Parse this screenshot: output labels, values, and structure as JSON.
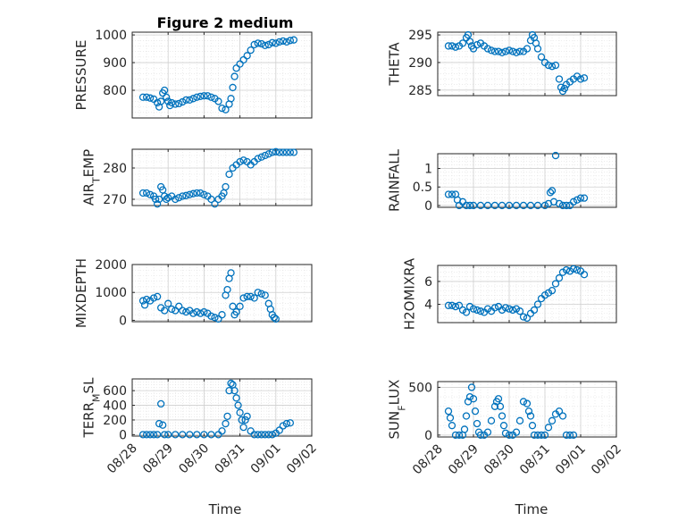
{
  "figure": {
    "title": "Figure 2 medium",
    "x_axis_label": "Time",
    "x_tick_labels": [
      "08/28",
      "08/29",
      "08/30",
      "08/31",
      "09/01",
      "09/02"
    ]
  },
  "colors": {
    "marker": "#0072BD",
    "axis": "#262626",
    "grid": "#dfdfdf"
  },
  "chart_data": [
    {
      "type": "scatter",
      "position": "row1-left",
      "ylabel": "PRESSURE",
      "ylim": [
        700,
        1010
      ],
      "yticks": [
        800,
        900,
        1000
      ],
      "xlim": [
        0,
        5
      ],
      "grid": true,
      "marker": "open-circle",
      "x": [
        0.3,
        0.4,
        0.5,
        0.6,
        0.7,
        0.75,
        0.8,
        0.85,
        0.9,
        0.95,
        1.0,
        1.05,
        1.1,
        1.2,
        1.3,
        1.4,
        1.5,
        1.6,
        1.7,
        1.8,
        1.9,
        2.0,
        2.1,
        2.2,
        2.3,
        2.4,
        2.5,
        2.6,
        2.7,
        2.75,
        2.8,
        2.85,
        2.9,
        3.0,
        3.1,
        3.2,
        3.3,
        3.4,
        3.5,
        3.6,
        3.7,
        3.8,
        3.9,
        4.0,
        4.1,
        4.2,
        4.3,
        4.4,
        4.5
      ],
      "y": [
        775,
        775,
        772,
        768,
        755,
        740,
        760,
        790,
        800,
        775,
        760,
        745,
        755,
        750,
        752,
        758,
        765,
        765,
        770,
        775,
        778,
        780,
        780,
        775,
        770,
        760,
        735,
        730,
        750,
        770,
        810,
        850,
        880,
        895,
        910,
        925,
        945,
        965,
        970,
        968,
        962,
        965,
        972,
        970,
        975,
        978,
        975,
        980,
        982
      ]
    },
    {
      "type": "scatter",
      "position": "row1-right",
      "ylabel": "THETA",
      "ylim": [
        284,
        295.5
      ],
      "yticks": [
        285,
        290,
        295
      ],
      "xlim": [
        0,
        5
      ],
      "grid": true,
      "marker": "open-circle",
      "x": [
        0.3,
        0.4,
        0.5,
        0.6,
        0.7,
        0.8,
        0.85,
        0.9,
        0.95,
        1.0,
        1.1,
        1.2,
        1.3,
        1.4,
        1.5,
        1.6,
        1.7,
        1.8,
        1.9,
        2.0,
        2.1,
        2.2,
        2.3,
        2.4,
        2.5,
        2.6,
        2.65,
        2.7,
        2.75,
        2.8,
        2.9,
        3.0,
        3.1,
        3.2,
        3.3,
        3.4,
        3.45,
        3.5,
        3.55,
        3.6,
        3.7,
        3.8,
        3.9,
        4.0,
        4.1
      ],
      "y": [
        293,
        293,
        292.8,
        293,
        293.5,
        294.5,
        295,
        293.8,
        293,
        292.5,
        293.2,
        293.5,
        293,
        292.5,
        292.2,
        292,
        292,
        291.8,
        292,
        292.2,
        292,
        291.8,
        292,
        292,
        292.5,
        294,
        295,
        294.5,
        293.5,
        292.5,
        291,
        290,
        289.5,
        289.3,
        289.5,
        287,
        285.5,
        284.8,
        285.3,
        286,
        286.5,
        287,
        287.5,
        287,
        287.2
      ]
    },
    {
      "type": "scatter",
      "position": "row2-left",
      "ylabel": "AIR_TEMP",
      "ylim": [
        268,
        286
      ],
      "yticks": [
        270,
        280
      ],
      "xlim": [
        0,
        5
      ],
      "grid": true,
      "marker": "open-circle",
      "x": [
        0.3,
        0.4,
        0.5,
        0.6,
        0.65,
        0.7,
        0.75,
        0.8,
        0.85,
        0.9,
        0.95,
        1.0,
        1.1,
        1.2,
        1.3,
        1.4,
        1.5,
        1.6,
        1.7,
        1.8,
        1.9,
        2.0,
        2.1,
        2.2,
        2.3,
        2.4,
        2.5,
        2.55,
        2.6,
        2.7,
        2.8,
        2.9,
        3.0,
        3.1,
        3.2,
        3.3,
        3.4,
        3.5,
        3.6,
        3.7,
        3.8,
        3.9,
        4.0,
        4.1,
        4.2,
        4.3,
        4.4,
        4.5
      ],
      "y": [
        272,
        272,
        271.5,
        271,
        270,
        268.5,
        270,
        274,
        273,
        271,
        270,
        270.5,
        271,
        270,
        270.5,
        271,
        271.2,
        271.5,
        271.8,
        272,
        272,
        271.5,
        271,
        270,
        268.5,
        270,
        271,
        272,
        274,
        278,
        280,
        281,
        282,
        282.5,
        282,
        281,
        282,
        283,
        283.5,
        284,
        284.5,
        285,
        285.2,
        285,
        285,
        285,
        285,
        285
      ]
    },
    {
      "type": "scatter",
      "position": "row2-right",
      "ylabel": "RAINFALL",
      "ylim": [
        -0.05,
        1.4
      ],
      "yticks": [
        0,
        0.5,
        1
      ],
      "xlim": [
        0,
        5
      ],
      "grid": true,
      "marker": "open-circle",
      "x": [
        0.3,
        0.4,
        0.5,
        0.55,
        0.6,
        0.7,
        0.8,
        0.9,
        1.0,
        1.2,
        1.4,
        1.6,
        1.8,
        2.0,
        2.2,
        2.4,
        2.6,
        2.8,
        3.0,
        3.1,
        3.15,
        3.2,
        3.25,
        3.3,
        3.4,
        3.5,
        3.6,
        3.7,
        3.8,
        3.9,
        4.0,
        4.1
      ],
      "y": [
        0.3,
        0.3,
        0.3,
        0.15,
        0,
        0.1,
        0,
        0,
        0,
        0,
        0,
        0,
        0,
        0,
        0,
        0,
        0,
        0,
        0,
        0.05,
        0.35,
        0.4,
        0.1,
        1.35,
        0.05,
        0,
        0,
        0,
        0.1,
        0.15,
        0.2,
        0.2
      ]
    },
    {
      "type": "scatter",
      "position": "row3-left",
      "ylabel": "MIXDEPTH",
      "ylim": [
        -50,
        2000
      ],
      "yticks": [
        0,
        1000,
        2000
      ],
      "xlim": [
        0,
        5
      ],
      "grid": true,
      "marker": "open-circle",
      "x": [
        0.3,
        0.35,
        0.4,
        0.5,
        0.6,
        0.7,
        0.8,
        0.9,
        1.0,
        1.1,
        1.2,
        1.3,
        1.4,
        1.5,
        1.6,
        1.7,
        1.8,
        1.9,
        2.0,
        2.1,
        2.2,
        2.3,
        2.4,
        2.5,
        2.6,
        2.65,
        2.7,
        2.75,
        2.8,
        2.85,
        2.9,
        3.0,
        3.1,
        3.2,
        3.3,
        3.4,
        3.5,
        3.6,
        3.7,
        3.8,
        3.85,
        3.9,
        3.95,
        4.0
      ],
      "y": [
        700,
        550,
        750,
        700,
        800,
        850,
        450,
        350,
        600,
        400,
        350,
        500,
        350,
        300,
        350,
        250,
        300,
        250,
        300,
        250,
        150,
        100,
        50,
        200,
        900,
        1100,
        1500,
        1700,
        500,
        200,
        300,
        500,
        800,
        850,
        850,
        800,
        1000,
        950,
        900,
        600,
        400,
        200,
        100,
        50
      ]
    },
    {
      "type": "scatter",
      "position": "row3-right",
      "ylabel": "H2OMIXRA",
      "ylim": [
        2.4,
        7.4
      ],
      "yticks": [
        4,
        6
      ],
      "xlim": [
        0,
        5
      ],
      "grid": true,
      "marker": "open-circle",
      "x": [
        0.3,
        0.4,
        0.5,
        0.6,
        0.7,
        0.8,
        0.9,
        1.0,
        1.1,
        1.2,
        1.3,
        1.4,
        1.5,
        1.6,
        1.7,
        1.8,
        1.9,
        2.0,
        2.1,
        2.2,
        2.3,
        2.4,
        2.5,
        2.6,
        2.7,
        2.8,
        2.9,
        3.0,
        3.1,
        3.2,
        3.3,
        3.4,
        3.5,
        3.6,
        3.7,
        3.8,
        3.9,
        4.0,
        4.1
      ],
      "y": [
        3.9,
        3.9,
        3.8,
        3.9,
        3.5,
        3.3,
        3.8,
        3.6,
        3.5,
        3.4,
        3.3,
        3.6,
        3.4,
        3.7,
        3.8,
        3.5,
        3.7,
        3.6,
        3.5,
        3.6,
        3.4,
        2.9,
        2.8,
        3.2,
        3.5,
        4.0,
        4.5,
        4.8,
        5.0,
        5.2,
        5.8,
        6.3,
        6.8,
        7.0,
        6.9,
        7.1,
        7.0,
        6.9,
        6.6
      ]
    },
    {
      "type": "scatter",
      "position": "row4-left",
      "ylabel": "TERR_MSL",
      "ylim": [
        -20,
        760
      ],
      "yticks": [
        0,
        200,
        400,
        600
      ],
      "xlim": [
        0,
        5
      ],
      "grid": true,
      "marker": "open-circle",
      "x": [
        0.3,
        0.4,
        0.5,
        0.6,
        0.7,
        0.75,
        0.8,
        0.85,
        0.9,
        1.0,
        1.2,
        1.4,
        1.6,
        1.8,
        2.0,
        2.2,
        2.4,
        2.5,
        2.6,
        2.65,
        2.7,
        2.75,
        2.8,
        2.85,
        2.9,
        2.95,
        3.0,
        3.05,
        3.1,
        3.15,
        3.2,
        3.3,
        3.4,
        3.5,
        3.6,
        3.7,
        3.8,
        3.9,
        4.0,
        4.1,
        4.2,
        4.3,
        4.4
      ],
      "y": [
        0,
        0,
        0,
        0,
        0,
        150,
        420,
        130,
        0,
        0,
        0,
        0,
        0,
        0,
        0,
        0,
        0,
        50,
        150,
        250,
        600,
        700,
        680,
        600,
        500,
        400,
        300,
        200,
        100,
        200,
        250,
        50,
        0,
        0,
        0,
        0,
        0,
        0,
        20,
        60,
        120,
        150,
        160
      ]
    },
    {
      "type": "scatter",
      "position": "row4-right",
      "ylabel": "SUN_FLUX",
      "ylim": [
        -20,
        560
      ],
      "yticks": [
        0,
        500
      ],
      "xlim": [
        0,
        5
      ],
      "grid": true,
      "marker": "open-circle",
      "x": [
        0.3,
        0.35,
        0.4,
        0.5,
        0.6,
        0.7,
        0.75,
        0.8,
        0.85,
        0.9,
        0.95,
        1.0,
        1.05,
        1.1,
        1.15,
        1.2,
        1.3,
        1.4,
        1.5,
        1.6,
        1.65,
        1.7,
        1.75,
        1.8,
        1.85,
        1.9,
        2.0,
        2.1,
        2.2,
        2.3,
        2.4,
        2.5,
        2.55,
        2.6,
        2.65,
        2.7,
        2.8,
        2.9,
        3.0,
        3.1,
        3.2,
        3.3,
        3.4,
        3.5,
        3.6,
        3.7,
        3.8
      ],
      "y": [
        250,
        180,
        100,
        0,
        0,
        0,
        60,
        200,
        350,
        400,
        500,
        380,
        250,
        120,
        30,
        0,
        0,
        30,
        150,
        300,
        350,
        380,
        300,
        200,
        100,
        20,
        0,
        0,
        30,
        150,
        350,
        330,
        250,
        200,
        100,
        0,
        0,
        0,
        0,
        80,
        150,
        220,
        250,
        200,
        0,
        0,
        0
      ]
    }
  ]
}
